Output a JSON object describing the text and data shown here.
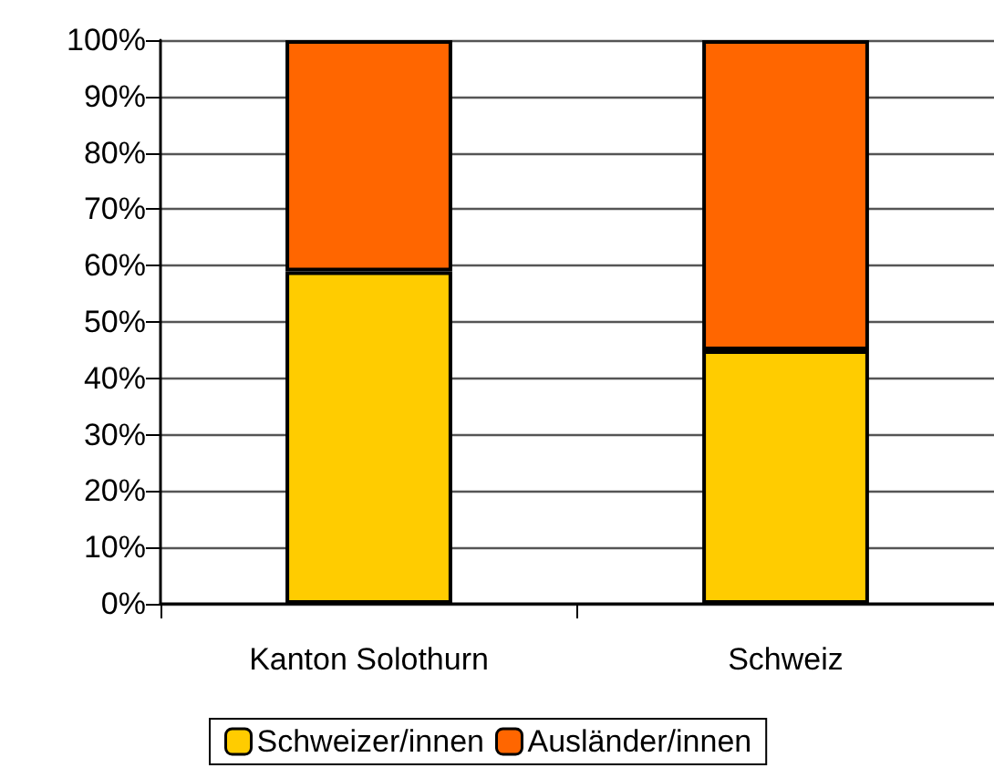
{
  "chart_data": {
    "type": "bar",
    "stacked": true,
    "categories": [
      "Kanton Solothurn",
      "Schweiz"
    ],
    "series": [
      {
        "name": "Schweizer/innen",
        "color": "#ffcc00",
        "values": [
          59,
          45
        ]
      },
      {
        "name": "Ausländer/innen",
        "color": "#ff6600",
        "values": [
          41,
          55
        ]
      }
    ],
    "ylim": [
      0,
      100
    ],
    "yticks": [
      {
        "value": 0,
        "label": "0%"
      },
      {
        "value": 10,
        "label": "10%"
      },
      {
        "value": 20,
        "label": "20%"
      },
      {
        "value": 30,
        "label": "30%"
      },
      {
        "value": 40,
        "label": "40%"
      },
      {
        "value": 50,
        "label": "50%"
      },
      {
        "value": 60,
        "label": "60%"
      },
      {
        "value": 70,
        "label": "70%"
      },
      {
        "value": 80,
        "label": "80%"
      },
      {
        "value": 90,
        "label": "90%"
      },
      {
        "value": 100,
        "label": "100%"
      }
    ],
    "grid": "y",
    "legend": "bottom"
  }
}
